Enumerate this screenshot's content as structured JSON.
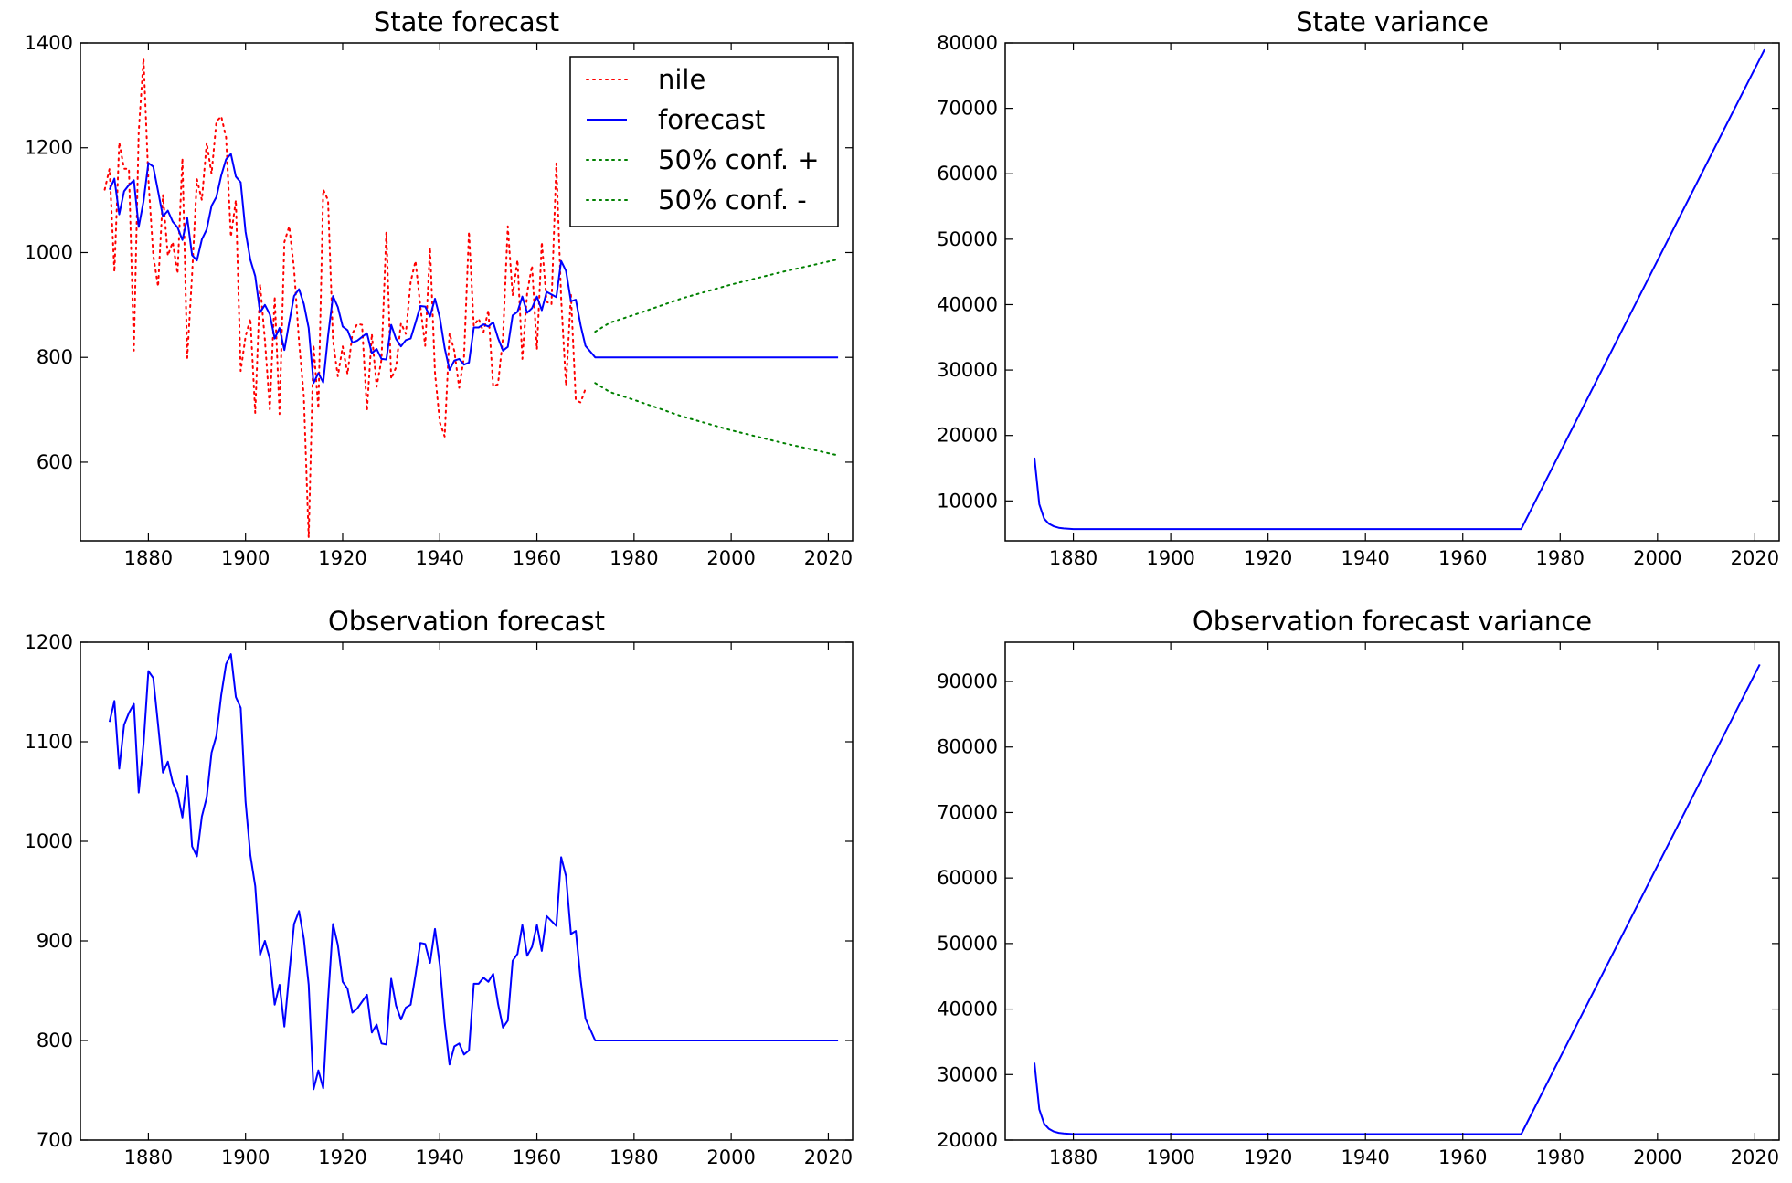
{
  "colors": {
    "nile": "#ff0000",
    "forecast": "#0000ff",
    "conf": "#008000",
    "axes": "#000000"
  },
  "chart_data": [
    {
      "id": "state-forecast",
      "type": "line",
      "title": "State forecast",
      "xlim": [
        1866,
        2025
      ],
      "ylim": [
        450,
        1400
      ],
      "xticks": [
        1880,
        1900,
        1920,
        1940,
        1960,
        1980,
        2000,
        2020
      ],
      "yticks": [
        600,
        800,
        1000,
        1200,
        1400
      ],
      "legend": {
        "placement": "top-right",
        "entries": [
          "nile",
          "forecast",
          "50% conf. +",
          "50% conf. -"
        ]
      },
      "series": [
        {
          "name": "nile",
          "style": "dotted",
          "color": "#ff0000",
          "x_start": 1871,
          "values": [
            1120,
            1160,
            963,
            1210,
            1160,
            1160,
            813,
            1230,
            1370,
            1140,
            995,
            935,
            1110,
            994,
            1020,
            960,
            1180,
            799,
            958,
            1140,
            1100,
            1210,
            1150,
            1250,
            1260,
            1220,
            1030,
            1100,
            774,
            840,
            874,
            694,
            940,
            833,
            701,
            916,
            692,
            1020,
            1050,
            969,
            831,
            726,
            456,
            824,
            702,
            1120,
            1100,
            832,
            764,
            821,
            768,
            845,
            864,
            862,
            698,
            845,
            744,
            796,
            1040,
            759,
            781,
            865,
            845,
            944,
            984,
            897,
            822,
            1010,
            771,
            676,
            649,
            846,
            812,
            742,
            801,
            1040,
            860,
            874,
            848,
            890,
            744,
            749,
            838,
            1050,
            918,
            986,
            797,
            923,
            975,
            815,
            1020,
            906,
            901,
            1170,
            912,
            746,
            919,
            718,
            714,
            740
          ]
        },
        {
          "name": "forecast",
          "style": "solid",
          "color": "#0000ff",
          "x_start": 1872,
          "values": [
            1120,
            1141,
            1073,
            1117,
            1129,
            1138,
            1049,
            1098,
            1171,
            1164,
            1117,
            1069,
            1080,
            1059,
            1048,
            1024,
            1066,
            995,
            985,
            1025,
            1044,
            1089,
            1106,
            1147,
            1178,
            1188,
            1145,
            1134,
            1040,
            986,
            955,
            886,
            900,
            882,
            836,
            856,
            814,
            867,
            917,
            930,
            902,
            856,
            751,
            770,
            752,
            841,
            917,
            896,
            859,
            852,
            828,
            832,
            839,
            846,
            808,
            816,
            797,
            796,
            862,
            835,
            821,
            833,
            836,
            866,
            898,
            897,
            878,
            912,
            876,
            818,
            776,
            794,
            797,
            786,
            790,
            857,
            857,
            863,
            859,
            867,
            837,
            813,
            820,
            880,
            887,
            916,
            885,
            894,
            916,
            890,
            925,
            920,
            915,
            984,
            965,
            907,
            910,
            861,
            822,
            811,
            800
          ],
          "flat_level": 800,
          "flat_start": 1972,
          "flat_end": 2022
        },
        {
          "name": "50% conf. +",
          "style": "dotted",
          "color": "#008000",
          "x": [
            1972,
            1975,
            1980,
            1990,
            2000,
            2010,
            2022
          ],
          "values": [
            849,
            866,
            881,
            913,
            939,
            962,
            987
          ]
        },
        {
          "name": "50% conf. -",
          "style": "dotted",
          "color": "#008000",
          "x": [
            1972,
            1975,
            1980,
            1990,
            2000,
            2010,
            2022
          ],
          "values": [
            751,
            734,
            719,
            687,
            661,
            638,
            613
          ]
        }
      ]
    },
    {
      "id": "state-variance",
      "type": "line",
      "title": "State variance",
      "xlim": [
        1866,
        2025
      ],
      "ylim": [
        3900,
        80000
      ],
      "xticks": [
        1880,
        1900,
        1920,
        1940,
        1960,
        1980,
        2000,
        2020
      ],
      "yticks": [
        10000,
        20000,
        30000,
        40000,
        50000,
        60000,
        70000,
        80000
      ],
      "series": [
        {
          "style": "solid",
          "color": "#0000ff",
          "x": [
            1872,
            1873,
            1874,
            1875,
            1876,
            1877,
            1878,
            1880,
            1885,
            1972,
            2022
          ],
          "values": [
            16600,
            9500,
            7300,
            6500,
            6100,
            5900,
            5800,
            5700,
            5700,
            5700,
            79000
          ]
        }
      ]
    },
    {
      "id": "observation-forecast",
      "type": "line",
      "title": "Observation forecast",
      "xlim": [
        1866,
        2025
      ],
      "ylim": [
        700,
        1200
      ],
      "xticks": [
        1880,
        1900,
        1920,
        1940,
        1960,
        1980,
        2000,
        2020
      ],
      "yticks": [
        700,
        800,
        900,
        1000,
        1100,
        1200
      ],
      "series": [
        {
          "style": "solid",
          "color": "#0000ff",
          "x_start": 1872,
          "values": [
            1120,
            1141,
            1073,
            1117,
            1129,
            1138,
            1049,
            1098,
            1171,
            1164,
            1117,
            1069,
            1080,
            1059,
            1048,
            1024,
            1066,
            995,
            985,
            1025,
            1044,
            1089,
            1106,
            1147,
            1178,
            1188,
            1145,
            1134,
            1040,
            986,
            955,
            886,
            900,
            882,
            836,
            856,
            814,
            867,
            917,
            930,
            902,
            856,
            751,
            770,
            752,
            841,
            917,
            896,
            859,
            852,
            828,
            832,
            839,
            846,
            808,
            816,
            797,
            796,
            862,
            835,
            821,
            833,
            836,
            866,
            898,
            897,
            878,
            912,
            876,
            818,
            776,
            794,
            797,
            786,
            790,
            857,
            857,
            863,
            859,
            867,
            837,
            813,
            820,
            880,
            887,
            916,
            885,
            894,
            916,
            890,
            925,
            920,
            915,
            984,
            965,
            907,
            910,
            861,
            822,
            811,
            800
          ],
          "flat_level": 800,
          "flat_start": 1972,
          "flat_end": 2022
        }
      ]
    },
    {
      "id": "observation-forecast-variance",
      "type": "line",
      "title": "Observation forecast variance",
      "xlim": [
        1866,
        2025
      ],
      "ylim": [
        20000,
        96000
      ],
      "xticks": [
        1880,
        1900,
        1920,
        1940,
        1960,
        1980,
        2000,
        2020
      ],
      "yticks": [
        20000,
        30000,
        40000,
        50000,
        60000,
        70000,
        80000,
        90000
      ],
      "series": [
        {
          "style": "solid",
          "color": "#0000ff",
          "x": [
            1872,
            1873,
            1874,
            1875,
            1876,
            1877,
            1878,
            1880,
            1885,
            1972,
            2021
          ],
          "values": [
            31800,
            24700,
            22500,
            21700,
            21300,
            21100,
            21000,
            20900,
            20900,
            20900,
            92600
          ]
        }
      ]
    }
  ]
}
